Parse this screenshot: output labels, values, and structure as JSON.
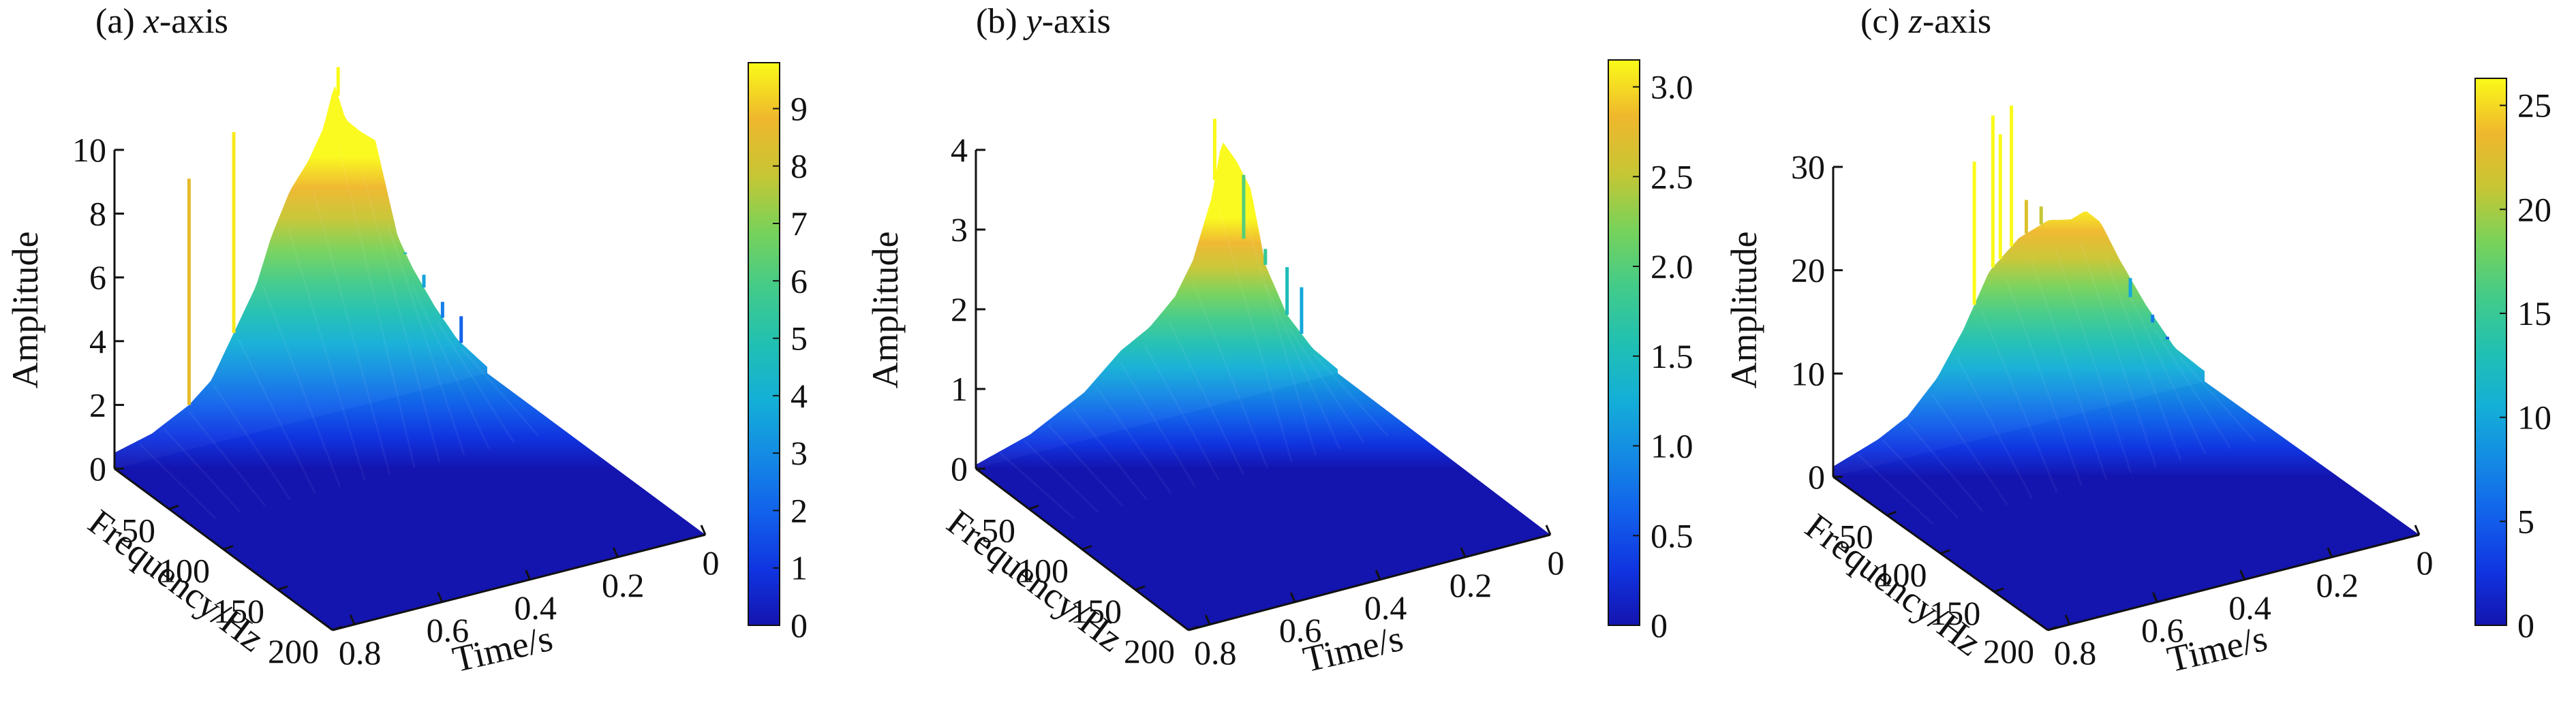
{
  "chart_data": [
    {
      "type": "surface",
      "panel_label": "(a) ",
      "title_italic": "x",
      "title_rest": "-axis",
      "zlabel": "Amplitude",
      "xlabel": "Time/s",
      "ylabel": "Frequency/Hz",
      "z_ticks": [
        "0",
        "2",
        "4",
        "6",
        "8",
        "10"
      ],
      "zlim": [
        0,
        10
      ],
      "time_ticks": [
        "0.8",
        "0.6",
        "0.4",
        "0.2",
        "0"
      ],
      "freq_ticks": [
        "50",
        "100",
        "150",
        "200"
      ],
      "colorbar_ticks": [
        "0",
        "1",
        "2",
        "3",
        "4",
        "5",
        "6",
        "7",
        "8",
        "9"
      ],
      "colorbar_max": 9.8,
      "ridge_profile": [
        [
          0.0,
          0.5
        ],
        [
          0.1,
          0.8
        ],
        [
          0.2,
          1.4
        ],
        [
          0.26,
          2.0
        ],
        [
          0.32,
          3.3
        ],
        [
          0.38,
          4.6
        ],
        [
          0.42,
          6.0
        ],
        [
          0.47,
          7.3
        ],
        [
          0.52,
          8.1
        ],
        [
          0.56,
          9.0
        ],
        [
          0.59,
          10.3
        ],
        [
          0.62,
          9.1
        ],
        [
          0.66,
          8.6
        ],
        [
          0.7,
          8.2
        ],
        [
          0.73,
          6.6
        ],
        [
          0.76,
          5.0
        ],
        [
          0.8,
          3.9
        ],
        [
          0.86,
          2.5
        ],
        [
          0.92,
          1.3
        ],
        [
          1.0,
          0.2
        ]
      ],
      "spikes": [
        [
          0.2,
          8.5
        ],
        [
          0.32,
          9.6
        ],
        [
          0.6,
          10.8
        ],
        [
          0.78,
          4.4
        ],
        [
          0.83,
          3.6
        ],
        [
          0.88,
          2.6
        ],
        [
          0.93,
          2.0
        ]
      ]
    },
    {
      "type": "surface",
      "panel_label": "(b) ",
      "title_italic": "y",
      "title_rest": "-axis",
      "zlabel": "Amplitude",
      "xlabel": "Time/s",
      "ylabel": "Frequency/Hz",
      "z_ticks": [
        "0",
        "1",
        "2",
        "3",
        "4"
      ],
      "zlim": [
        0,
        4
      ],
      "time_ticks": [
        "0.8",
        "0.6",
        "0.4",
        "0.2",
        "0"
      ],
      "freq_ticks": [
        "50",
        "100",
        "150",
        "200"
      ],
      "colorbar_ticks": [
        "0",
        "0.5",
        "1.0",
        "1.5",
        "2.0",
        "2.5",
        "3.0"
      ],
      "colorbar_max": 3.15,
      "ridge_profile": [
        [
          0.0,
          0.05
        ],
        [
          0.15,
          0.25
        ],
        [
          0.3,
          0.6
        ],
        [
          0.4,
          1.0
        ],
        [
          0.48,
          1.2
        ],
        [
          0.55,
          1.5
        ],
        [
          0.6,
          1.9
        ],
        [
          0.65,
          2.6
        ],
        [
          0.68,
          3.3
        ],
        [
          0.72,
          3.0
        ],
        [
          0.76,
          2.6
        ],
        [
          0.8,
          1.6
        ],
        [
          0.86,
          0.9
        ],
        [
          0.93,
          0.4
        ],
        [
          1.0,
          0.05
        ]
      ],
      "spikes": [
        [
          0.66,
          3.6
        ],
        [
          0.74,
          2.0
        ],
        [
          0.8,
          1.8
        ],
        [
          0.86,
          1.5
        ],
        [
          0.9,
          1.2
        ]
      ]
    },
    {
      "type": "surface",
      "panel_label": "(c) ",
      "title_italic": "z",
      "title_rest": "-axis",
      "zlabel": "Amplitude",
      "xlabel": "Time/s",
      "ylabel": "Frequency/Hz",
      "z_ticks": [
        "0",
        "10",
        "20",
        "30"
      ],
      "zlim": [
        0,
        30
      ],
      "time_ticks": [
        "0.8",
        "0.6",
        "0.4",
        "0.2",
        "0"
      ],
      "freq_ticks": [
        "50",
        "100",
        "150",
        "200"
      ],
      "colorbar_ticks": [
        "0",
        "5",
        "10",
        "15",
        "20",
        "25"
      ],
      "colorbar_max": 26.3,
      "ridge_profile": [
        [
          0.0,
          1.0
        ],
        [
          0.12,
          2.5
        ],
        [
          0.2,
          4.0
        ],
        [
          0.28,
          7.0
        ],
        [
          0.35,
          11.0
        ],
        [
          0.42,
          16.0
        ],
        [
          0.5,
          18.5
        ],
        [
          0.58,
          19.5
        ],
        [
          0.64,
          19.0
        ],
        [
          0.68,
          19.5
        ],
        [
          0.72,
          18.0
        ],
        [
          0.77,
          14.0
        ],
        [
          0.84,
          9.0
        ],
        [
          0.92,
          4.0
        ],
        [
          1.0,
          1.0
        ]
      ],
      "spikes": [
        [
          0.38,
          27.0
        ],
        [
          0.43,
          31.0
        ],
        [
          0.45,
          29.0
        ],
        [
          0.48,
          31.5
        ],
        [
          0.52,
          22.0
        ],
        [
          0.56,
          21.0
        ],
        [
          0.8,
          10.0
        ],
        [
          0.86,
          7.0
        ],
        [
          0.9,
          5.0
        ]
      ]
    }
  ]
}
